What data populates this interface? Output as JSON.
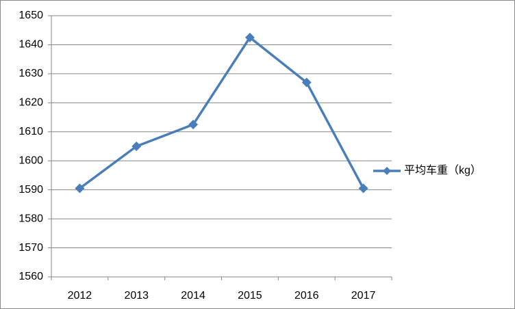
{
  "chart_data": {
    "type": "line",
    "categories": [
      "2012",
      "2013",
      "2014",
      "2015",
      "2016",
      "2017"
    ],
    "series": [
      {
        "name": "平均车重（kg）",
        "color": "#4a7ebb",
        "values": [
          1590.5,
          1605,
          1612.5,
          1642.5,
          1627,
          1590.5
        ]
      }
    ],
    "ylim": [
      1560,
      1650
    ],
    "yticks": [
      1560,
      1570,
      1580,
      1590,
      1600,
      1610,
      1620,
      1630,
      1640,
      1650
    ],
    "grid": true,
    "legend": "right"
  }
}
